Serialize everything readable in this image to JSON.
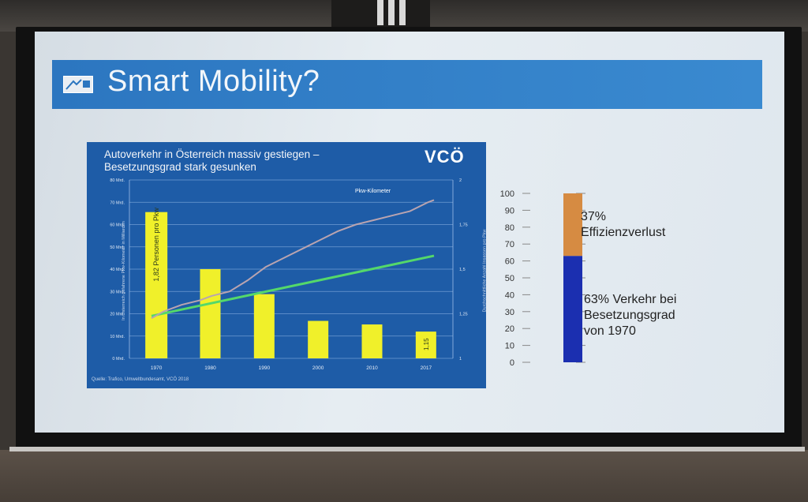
{
  "slide": {
    "title": "Smart Mobility?"
  },
  "left_chart": {
    "title": "Autoverkehr in Österreich massiv gestiegen –\nBesetzungsgrad stark gesunken",
    "brand": "VCÖ",
    "series_label": "Pkw-Kilometer",
    "bar_label": "1,82 Personen pro Pkw",
    "last_bar_label": "1,15",
    "source": "Quelle: Trafico, Umweltbundesamt, VCÖ 2018",
    "y_left_title": "In Österreich gefahrene Pkw-Kilometer in Milliarden",
    "y_right_title": "Durchschnittliche Anzahl Insassen pro Pkw",
    "y_left_ticks": [
      "0 Mrd.",
      "10 Mrd.",
      "20 Mrd.",
      "30 Mrd.",
      "40 Mrd.",
      "50 Mrd.",
      "60 Mrd.",
      "70 Mrd.",
      "80 Mrd."
    ],
    "y_right_ticks": [
      "1",
      "1,25",
      "1,5",
      "1,75",
      "2"
    ],
    "x_ticks": [
      "1970",
      "1980",
      "1990",
      "2000",
      "2010",
      "2017"
    ]
  },
  "right_chart": {
    "ticks": [
      "0",
      "10",
      "20",
      "30",
      "40",
      "50",
      "60",
      "70",
      "80",
      "90",
      "100"
    ],
    "label_top": "37%\nEffizienzverlust",
    "label_bottom": "63% Verkehr bei\nBesetzungsgrad\nvon 1970"
  },
  "chart_data": [
    {
      "type": "bar",
      "title": "Autoverkehr in Österreich massiv gestiegen – Besetzungsgrad stark gesunken",
      "categories": [
        "1970",
        "1980",
        "1990",
        "2000",
        "2010",
        "2017"
      ],
      "series": [
        {
          "name": "Personen pro Pkw",
          "values": [
            1.82,
            1.5,
            1.36,
            1.21,
            1.19,
            1.15
          ],
          "axis": "right",
          "color": "#f0f02a"
        },
        {
          "name": "Pkw-Kilometer",
          "x": [
            1970,
            1972,
            1975,
            1978,
            1980,
            1983,
            1986,
            1989,
            1992,
            1995,
            1998,
            2001,
            2004,
            2007,
            2010,
            2013,
            2016,
            2017
          ],
          "values": [
            18,
            21,
            24,
            26,
            28,
            30,
            35,
            41,
            45,
            49,
            53,
            57,
            60,
            62,
            64,
            66,
            70,
            71
          ],
          "axis": "left",
          "color": "#b9a4b0"
        },
        {
          "values": [
            19,
            46
          ],
          "x": [
            1970,
            2017
          ],
          "axis": "left",
          "color": "#54d86a"
        }
      ],
      "ylim_left": [
        0,
        80
      ],
      "ylim_right": [
        1,
        2
      ],
      "grid": true
    },
    {
      "type": "bar",
      "stacked": true,
      "categories": [
        ""
      ],
      "series": [
        {
          "name": "63% Verkehr bei Besetzungsgrad von 1970",
          "values": [
            63
          ],
          "color": "#1b2fb0"
        },
        {
          "name": "37% Effizienzverlust",
          "values": [
            37
          ],
          "color": "#d68b42"
        }
      ],
      "ylim": [
        0,
        100
      ]
    }
  ]
}
